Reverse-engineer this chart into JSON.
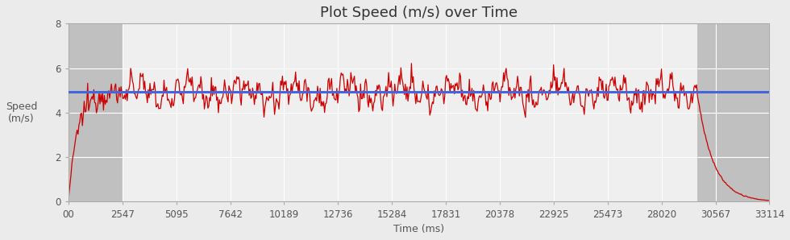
{
  "title": "Plot Speed (m/s) over Time",
  "xlabel": "Time (ms)",
  "ylabel": "Speed\n(m/s)",
  "xlim": [
    0,
    33114
  ],
  "ylim": [
    0,
    8
  ],
  "yticks": [
    0,
    2,
    4,
    6,
    8
  ],
  "xtick_labels": [
    "00",
    "2547",
    "5095",
    "7642",
    "10189",
    "12736",
    "15284",
    "17831",
    "20378",
    "22925",
    "25473",
    "28020",
    "30567",
    "33114"
  ],
  "xtick_values": [
    0,
    2547,
    5095,
    7642,
    10189,
    12736,
    15284,
    17831,
    20378,
    22925,
    25473,
    28020,
    30567,
    33114
  ],
  "avg_speed": 4.92,
  "avg_line_color": "#4466dd",
  "speed_line_color": "#cc0000",
  "bg_color": "#ebebeb",
  "plot_bg_color": "#d8d8d8",
  "active_bg_color": "#efefef",
  "gray_region_end1": 2547,
  "gray_region_start2": 29700,
  "total_time": 33114,
  "accel_end": 2547,
  "decel_start": 29700,
  "title_fontsize": 13,
  "label_fontsize": 9,
  "tick_fontsize": 8.5
}
